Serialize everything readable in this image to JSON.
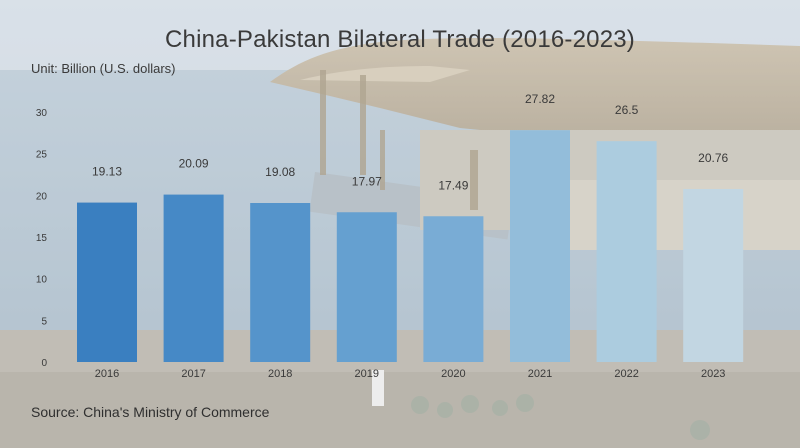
{
  "header": {
    "title": "China-Pakistan Bilateral Trade (2016-2023)",
    "unit": "Unit: Billion (U.S. dollars)"
  },
  "footer": {
    "source": "Source: China's Ministry of Commerce"
  },
  "chart_data": {
    "type": "bar",
    "title": "China-Pakistan Bilateral Trade (2016-2023)",
    "ylabel": "Unit: Billion (U.S. dollars)",
    "xlabel": "",
    "categories": [
      "2016",
      "2017",
      "2018",
      "2019",
      "2020",
      "2021",
      "2022",
      "2023"
    ],
    "values": [
      19.13,
      20.09,
      19.08,
      17.97,
      17.49,
      27.82,
      26.5,
      20.76
    ],
    "value_labels": [
      "19.13",
      "20.09",
      "19.08",
      "17.97",
      "17.49",
      "27.82",
      "26.5",
      "20.76"
    ],
    "ylim": [
      0,
      30
    ],
    "yticks": [
      0,
      5,
      10,
      15,
      20,
      25,
      30
    ],
    "grid": false,
    "legend": "none",
    "bar_colors": [
      "#3a7fc0",
      "#4689c6",
      "#5594cb",
      "#65a0d0",
      "#79acd5",
      "#93bdda",
      "#acccdf",
      "#c2d6e2"
    ],
    "text_color": "#3a3a3a"
  }
}
